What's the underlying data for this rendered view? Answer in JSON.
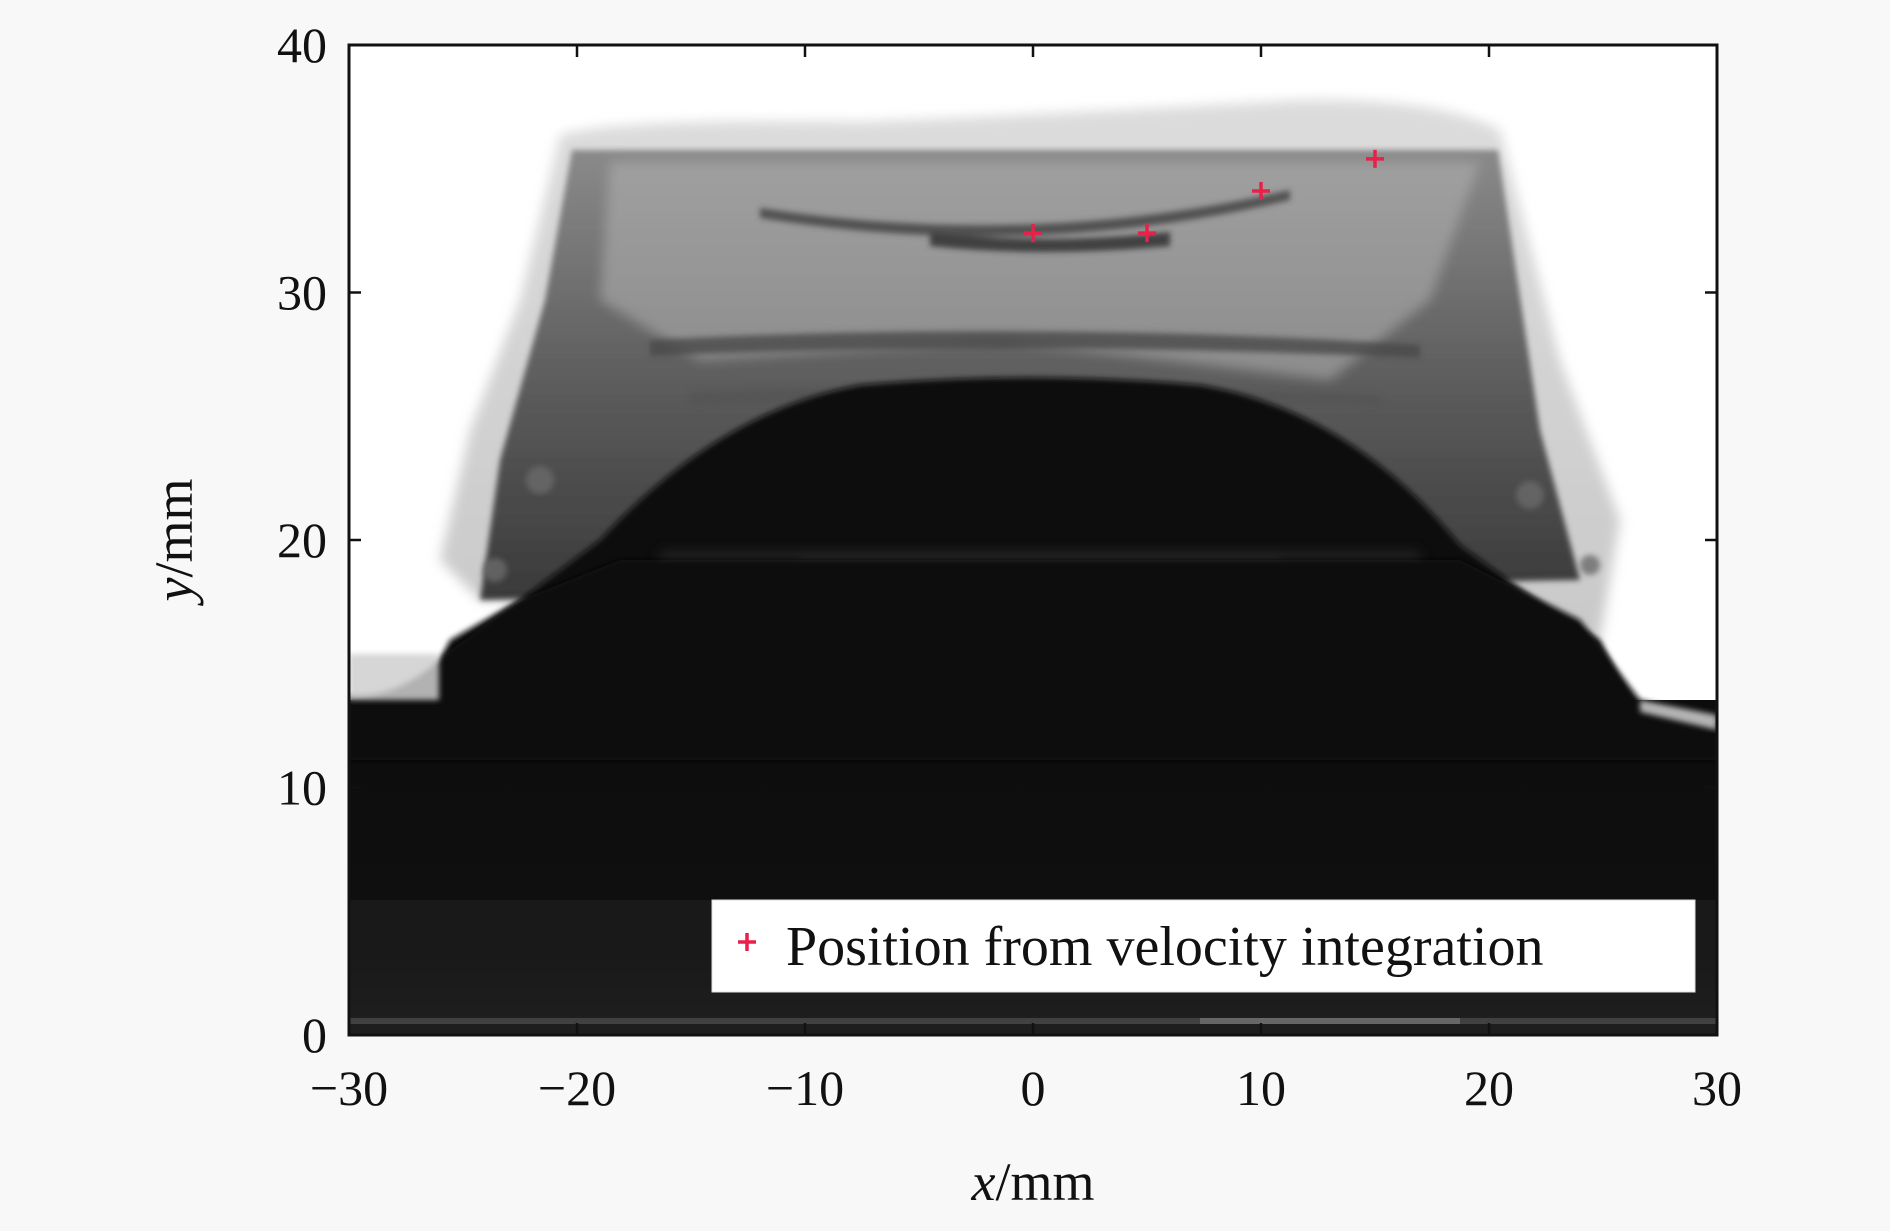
{
  "chart_data": {
    "type": "scatter",
    "xlabel": {
      "var": "x",
      "unit": "/mm"
    },
    "ylabel": {
      "var": "y",
      "unit": "/mm"
    },
    "xlim": [
      -30,
      30
    ],
    "ylim": [
      0,
      40
    ],
    "x_ticks": [
      -30,
      -20,
      -10,
      0,
      10,
      20,
      30
    ],
    "y_ticks": [
      0,
      10,
      20,
      30,
      40
    ],
    "x_tick_labels": [
      "−30",
      "−20",
      "−10",
      "0",
      "10",
      "20",
      "30"
    ],
    "y_tick_labels": [
      "0",
      "10",
      "20",
      "30",
      "40"
    ],
    "grid": false,
    "legend_position": "bottom-right",
    "background": "grayscale radiograph image",
    "marker_color": "#e8204a",
    "marker_symbol": "+",
    "series": [
      {
        "name": "Position from velocity integration",
        "x": [
          0,
          5,
          10,
          15
        ],
        "y": [
          32.4,
          32.4,
          34.1,
          35.4
        ]
      }
    ]
  }
}
